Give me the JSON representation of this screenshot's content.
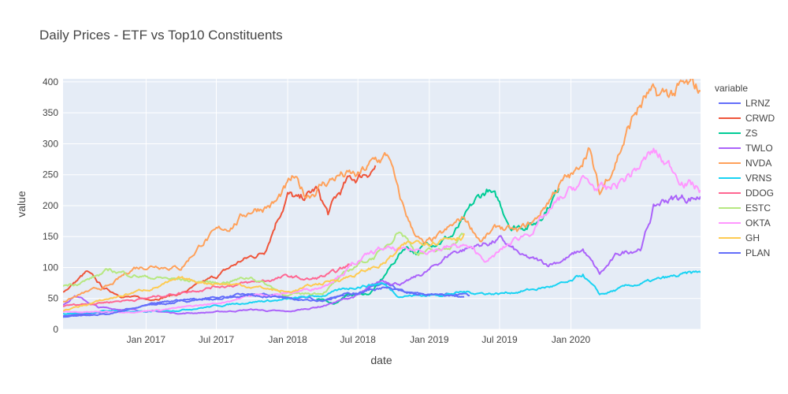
{
  "chart_data": {
    "type": "line",
    "title": "Daily Prices - ETF vs Top10 Constituents",
    "xlabel": "date",
    "ylabel": "value",
    "xlim": [
      "2016-06-01",
      "2020-11-30"
    ],
    "ylim": [
      0,
      405
    ],
    "x_ticks": [
      "2017-01-01",
      "2017-07-01",
      "2018-01-01",
      "2018-07-01",
      "2019-01-01",
      "2019-07-01",
      "2020-01-01"
    ],
    "x_tick_labels": [
      "Jan 2017",
      "Jul 2017",
      "Jan 2018",
      "Jul 2018",
      "Jan 2019",
      "Jul 2019",
      "Jan 2020"
    ],
    "y_ticks": [
      0,
      50,
      100,
      150,
      200,
      250,
      300,
      350,
      400
    ],
    "y_tick_labels": [
      "0",
      "50",
      "100",
      "150",
      "200",
      "250",
      "300",
      "350",
      "400"
    ],
    "grid": true,
    "legend_title": "variable",
    "legend_position": "right",
    "series": [
      {
        "name": "LRNZ",
        "color": "#636efa",
        "points": [
          [
            "2016-06-01",
            22
          ],
          [
            "2016-09-01",
            26
          ],
          [
            "2017-01-01",
            38
          ],
          [
            "2017-04-01",
            45
          ],
          [
            "2017-07-01",
            52
          ],
          [
            "2017-10-01",
            56
          ],
          [
            "2018-01-01",
            52
          ],
          [
            "2018-04-01",
            48
          ],
          [
            "2018-07-01",
            60
          ],
          [
            "2018-09-01",
            72
          ],
          [
            "2018-11-01",
            58
          ],
          [
            "2019-01-01",
            55
          ],
          [
            "2019-02-15",
            58
          ],
          [
            "2019-04-01",
            56
          ],
          [
            "2019-04-15",
            55
          ]
        ]
      },
      {
        "name": "CRWD",
        "color": "#EF553B",
        "points": [
          [
            "2016-06-01",
            60
          ],
          [
            "2016-08-01",
            92
          ],
          [
            "2016-09-15",
            65
          ],
          [
            "2016-11-01",
            55
          ],
          [
            "2017-01-01",
            48
          ],
          [
            "2017-04-01",
            58
          ],
          [
            "2017-07-01",
            85
          ],
          [
            "2017-09-01",
            110
          ],
          [
            "2017-11-01",
            125
          ],
          [
            "2017-12-01",
            175
          ],
          [
            "2018-01-01",
            220
          ],
          [
            "2018-02-01",
            205
          ],
          [
            "2018-03-15",
            225
          ],
          [
            "2018-04-15",
            185
          ],
          [
            "2018-05-01",
            205
          ],
          [
            "2018-06-01",
            235
          ],
          [
            "2018-07-01",
            245
          ],
          [
            "2018-08-01",
            260
          ],
          [
            "2018-08-15",
            265
          ]
        ]
      },
      {
        "name": "ZS",
        "color": "#00cc96",
        "points": [
          [
            "2018-03-16",
            48
          ],
          [
            "2018-05-01",
            42
          ],
          [
            "2018-06-01",
            55
          ],
          [
            "2018-08-01",
            58
          ],
          [
            "2018-09-01",
            80
          ],
          [
            "2018-10-01",
            108
          ],
          [
            "2018-11-01",
            135
          ],
          [
            "2018-12-01",
            125
          ],
          [
            "2019-01-01",
            140
          ],
          [
            "2019-03-01",
            152
          ],
          [
            "2019-04-01",
            175
          ],
          [
            "2019-05-01",
            205
          ],
          [
            "2019-06-01",
            225
          ],
          [
            "2019-07-01",
            200
          ],
          [
            "2019-08-01",
            168
          ],
          [
            "2019-10-01",
            172
          ],
          [
            "2019-11-01",
            200
          ],
          [
            "2019-12-01",
            228
          ]
        ]
      },
      {
        "name": "TWLO",
        "color": "#ab63fa",
        "points": [
          [
            "2016-06-01",
            40
          ],
          [
            "2016-07-01",
            55
          ],
          [
            "2016-09-01",
            35
          ],
          [
            "2017-01-01",
            30
          ],
          [
            "2017-04-01",
            26
          ],
          [
            "2017-07-01",
            28
          ],
          [
            "2017-10-01",
            32
          ],
          [
            "2018-01-01",
            28
          ],
          [
            "2018-04-01",
            38
          ],
          [
            "2018-07-01",
            55
          ],
          [
            "2018-09-01",
            78
          ],
          [
            "2018-11-01",
            75
          ],
          [
            "2019-01-01",
            95
          ],
          [
            "2019-03-01",
            125
          ],
          [
            "2019-05-01",
            135
          ],
          [
            "2019-07-01",
            145
          ],
          [
            "2019-09-01",
            115
          ],
          [
            "2019-11-01",
            105
          ],
          [
            "2020-01-01",
            118
          ],
          [
            "2020-02-01",
            128
          ],
          [
            "2020-03-15",
            88
          ],
          [
            "2020-05-01",
            120
          ],
          [
            "2020-07-01",
            135
          ],
          [
            "2020-08-01",
            195
          ],
          [
            "2020-09-01",
            210
          ],
          [
            "2020-11-30",
            215
          ]
        ]
      },
      {
        "name": "NVDA",
        "color": "#FFA15A",
        "points": [
          [
            "2016-06-01",
            45
          ],
          [
            "2016-08-01",
            60
          ],
          [
            "2016-10-01",
            70
          ],
          [
            "2016-12-01",
            100
          ],
          [
            "2017-02-01",
            105
          ],
          [
            "2017-04-01",
            100
          ],
          [
            "2017-06-01",
            145
          ],
          [
            "2017-08-01",
            165
          ],
          [
            "2017-10-01",
            195
          ],
          [
            "2017-12-01",
            205
          ],
          [
            "2018-01-15",
            240
          ],
          [
            "2018-02-15",
            215
          ],
          [
            "2018-04-01",
            235
          ],
          [
            "2018-05-15",
            250
          ],
          [
            "2018-07-01",
            245
          ],
          [
            "2018-08-15",
            270
          ],
          [
            "2018-09-20",
            280
          ],
          [
            "2018-10-15",
            210
          ],
          [
            "2018-11-15",
            165
          ],
          [
            "2018-12-20",
            135
          ],
          [
            "2019-02-01",
            150
          ],
          [
            "2019-04-01",
            180
          ],
          [
            "2019-05-15",
            145
          ],
          [
            "2019-07-01",
            165
          ],
          [
            "2019-08-15",
            155
          ],
          [
            "2019-10-01",
            175
          ],
          [
            "2019-12-01",
            235
          ],
          [
            "2020-01-15",
            250
          ],
          [
            "2020-02-15",
            300
          ],
          [
            "2020-03-15",
            215
          ],
          [
            "2020-05-01",
            285
          ],
          [
            "2020-06-15",
            350
          ],
          [
            "2020-07-15",
            375
          ],
          [
            "2020-08-15",
            370
          ],
          [
            "2020-10-01",
            385
          ],
          [
            "2020-11-30",
            385
          ]
        ]
      },
      {
        "name": "VRNS",
        "color": "#19d3f3",
        "points": [
          [
            "2016-06-01",
            25
          ],
          [
            "2016-10-01",
            30
          ],
          [
            "2017-01-01",
            28
          ],
          [
            "2017-04-01",
            32
          ],
          [
            "2017-07-01",
            38
          ],
          [
            "2017-10-01",
            45
          ],
          [
            "2018-01-01",
            48
          ],
          [
            "2018-04-01",
            55
          ],
          [
            "2018-07-01",
            70
          ],
          [
            "2018-09-01",
            75
          ],
          [
            "2018-10-15",
            55
          ],
          [
            "2019-01-01",
            55
          ],
          [
            "2019-04-01",
            60
          ],
          [
            "2019-07-01",
            58
          ],
          [
            "2019-10-01",
            65
          ],
          [
            "2020-01-01",
            75
          ],
          [
            "2020-02-01",
            88
          ],
          [
            "2020-03-15",
            55
          ],
          [
            "2020-06-01",
            70
          ],
          [
            "2020-09-01",
            82
          ],
          [
            "2020-11-30",
            92
          ]
        ]
      },
      {
        "name": "DDOG",
        "color": "#FF6692",
        "points": [
          [
            "2016-06-01",
            38
          ],
          [
            "2016-10-01",
            45
          ],
          [
            "2017-01-01",
            50
          ],
          [
            "2017-04-01",
            60
          ],
          [
            "2017-07-01",
            70
          ],
          [
            "2017-10-01",
            75
          ],
          [
            "2018-01-01",
            85
          ],
          [
            "2018-03-01",
            80
          ],
          [
            "2018-05-01",
            90
          ],
          [
            "2018-06-15",
            105
          ]
        ]
      },
      {
        "name": "ESTC",
        "color": "#B6E880",
        "points": [
          [
            "2016-06-01",
            70
          ],
          [
            "2016-08-01",
            80
          ],
          [
            "2016-10-01",
            95
          ],
          [
            "2017-01-01",
            85
          ],
          [
            "2017-04-01",
            80
          ],
          [
            "2017-07-01",
            75
          ],
          [
            "2017-10-01",
            85
          ],
          [
            "2018-01-01",
            55
          ],
          [
            "2018-04-01",
            60
          ],
          [
            "2018-07-01",
            105
          ],
          [
            "2018-09-01",
            125
          ],
          [
            "2018-10-15",
            165
          ],
          [
            "2018-12-01",
            125
          ],
          [
            "2019-02-01",
            125
          ],
          [
            "2019-04-01",
            155
          ]
        ]
      },
      {
        "name": "OKTA",
        "color": "#FF97FF",
        "points": [
          [
            "2016-06-01",
            28
          ],
          [
            "2016-10-01",
            28
          ],
          [
            "2017-01-01",
            30
          ],
          [
            "2017-04-01",
            35
          ],
          [
            "2017-07-01",
            42
          ],
          [
            "2017-10-01",
            55
          ],
          [
            "2018-01-01",
            58
          ],
          [
            "2018-04-01",
            70
          ],
          [
            "2018-07-01",
            110
          ],
          [
            "2018-09-01",
            130
          ],
          [
            "2018-11-01",
            125
          ],
          [
            "2019-01-01",
            130
          ],
          [
            "2019-04-01",
            135
          ],
          [
            "2019-06-01",
            110
          ],
          [
            "2019-08-01",
            140
          ],
          [
            "2019-10-01",
            165
          ],
          [
            "2019-12-01",
            205
          ],
          [
            "2020-02-01",
            240
          ],
          [
            "2020-04-01",
            220
          ],
          [
            "2020-06-01",
            250
          ],
          [
            "2020-08-01",
            285
          ],
          [
            "2020-09-15",
            260
          ],
          [
            "2020-11-30",
            225
          ]
        ]
      },
      {
        "name": "GH",
        "color": "#FECB52",
        "points": [
          [
            "2016-06-01",
            30
          ],
          [
            "2016-10-01",
            50
          ],
          [
            "2017-01-01",
            65
          ],
          [
            "2017-04-01",
            80
          ],
          [
            "2017-07-01",
            75
          ],
          [
            "2017-10-01",
            70
          ],
          [
            "2018-01-01",
            60
          ],
          [
            "2018-04-01",
            75
          ],
          [
            "2018-07-01",
            90
          ],
          [
            "2018-09-01",
            105
          ],
          [
            "2018-11-01",
            135
          ],
          [
            "2019-01-01",
            145
          ],
          [
            "2019-04-01",
            155
          ]
        ]
      },
      {
        "name": "PLAN",
        "color": "#636efa",
        "points": [
          [
            "2016-06-01",
            20
          ],
          [
            "2016-10-01",
            25
          ],
          [
            "2017-01-01",
            38
          ],
          [
            "2017-04-01",
            48
          ],
          [
            "2017-07-01",
            50
          ],
          [
            "2017-10-01",
            55
          ],
          [
            "2018-01-01",
            52
          ],
          [
            "2018-04-01",
            48
          ],
          [
            "2018-07-01",
            60
          ],
          [
            "2018-09-01",
            68
          ],
          [
            "2018-11-01",
            58
          ],
          [
            "2019-01-01",
            55
          ],
          [
            "2019-04-01",
            53
          ]
        ]
      }
    ]
  }
}
